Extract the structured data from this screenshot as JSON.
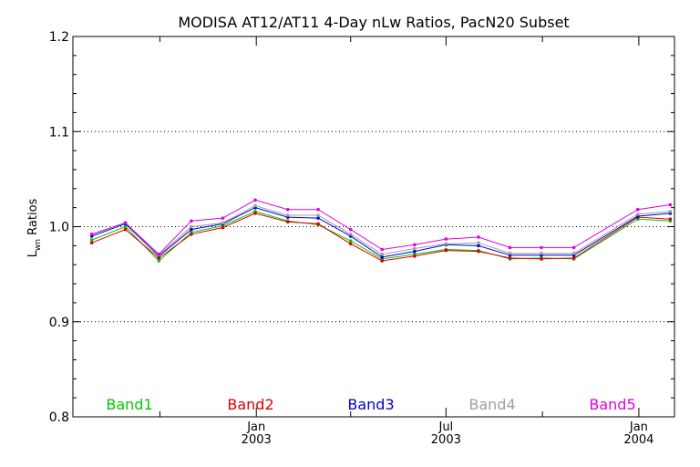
{
  "chart_data": {
    "type": "line",
    "title": "MODISA AT12/AT11 4-Day nLw Ratios, PacN20 Subset",
    "xlabel": "",
    "ylabel_main": "L",
    "ylabel_sub": "wn",
    "ylabel_rest": " Ratios",
    "ylim": [
      0.8,
      1.2
    ],
    "y_ticks": [
      0.8,
      0.9,
      1.0,
      1.1,
      1.2
    ],
    "y_tick_labels": [
      "0.8",
      "0.9",
      "1.0",
      "1.1",
      "1.2"
    ],
    "y_gridlines": [
      0.9,
      1.0,
      1.1
    ],
    "x_ticks": [
      {
        "month": "Jan",
        "year": "2003",
        "pos": "2003-01"
      },
      {
        "month": "Jul",
        "year": "2003",
        "pos": "2003-07"
      },
      {
        "month": "Jan",
        "year": "2004",
        "pos": "2004-01"
      }
    ],
    "x": [
      "2002-07-28",
      "2002-08-29",
      "2002-09-30",
      "2002-10-31",
      "2002-11-30",
      "2002-12-31",
      "2003-01-31",
      "2003-03-01",
      "2003-04-01",
      "2003-05-01",
      "2003-06-01",
      "2003-07-01",
      "2003-08-01",
      "2003-08-31",
      "2003-09-30",
      "2003-10-31",
      "2003-12-31",
      "2004-01-31"
    ],
    "series": [
      {
        "name": "Band1",
        "color": "#00c800",
        "values": [
          0.986,
          1.0,
          0.964,
          0.994,
          1.001,
          1.016,
          1.006,
          1.002,
          0.985,
          0.966,
          0.971,
          0.976,
          0.975,
          0.966,
          0.967,
          0.966,
          1.008,
          1.006
        ]
      },
      {
        "name": "Band2",
        "color": "#e00000",
        "values": [
          0.983,
          0.997,
          0.967,
          0.992,
          0.999,
          1.014,
          1.005,
          1.003,
          0.982,
          0.964,
          0.969,
          0.975,
          0.974,
          0.967,
          0.966,
          0.967,
          1.01,
          1.008
        ]
      },
      {
        "name": "Band3",
        "color": "#0000d0",
        "values": [
          0.99,
          1.003,
          0.969,
          0.997,
          1.003,
          1.02,
          1.01,
          1.009,
          0.99,
          0.968,
          0.974,
          0.981,
          0.98,
          0.97,
          0.97,
          0.97,
          1.011,
          1.014
        ]
      },
      {
        "name": "Band4",
        "color": "#a0a0a0",
        "values": [
          0.992,
          1.004,
          0.97,
          1.0,
          1.004,
          1.022,
          1.012,
          1.012,
          0.992,
          0.971,
          0.977,
          0.982,
          0.983,
          0.972,
          0.972,
          0.972,
          1.013,
          1.016
        ]
      },
      {
        "name": "Band5",
        "color": "#e000e0",
        "values": [
          0.992,
          1.004,
          0.971,
          1.006,
          1.009,
          1.028,
          1.018,
          1.018,
          0.997,
          0.976,
          0.981,
          0.987,
          0.989,
          0.978,
          0.978,
          0.978,
          1.018,
          1.023
        ]
      }
    ],
    "legend_placement": "bottom-inside",
    "grid": "dotted horizontal"
  }
}
